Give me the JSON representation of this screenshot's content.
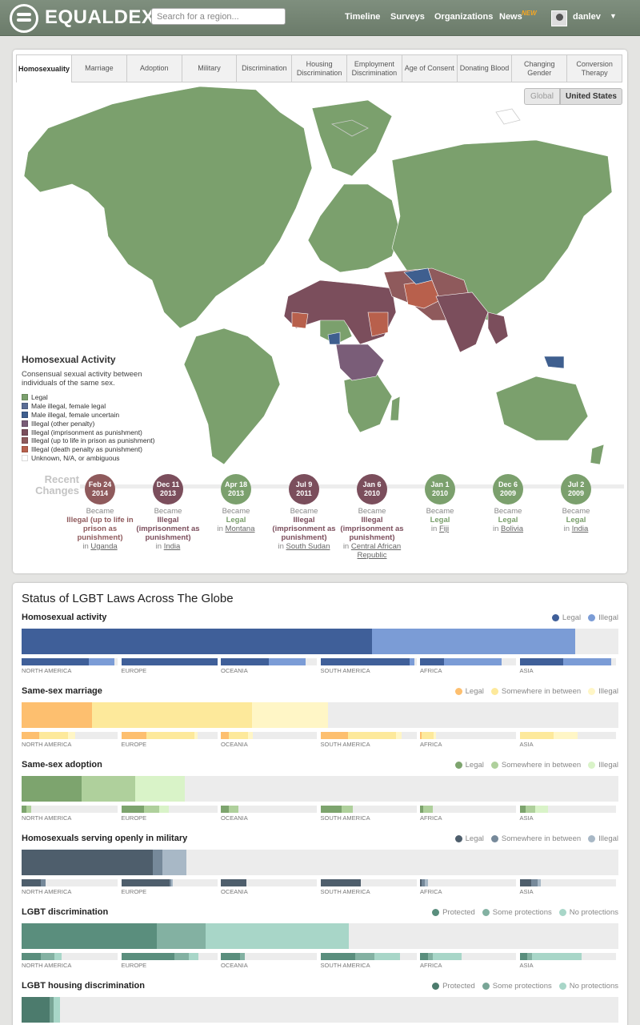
{
  "header": {
    "brand": "EQUALDEX",
    "search_placeholder": "Search for a region...",
    "nav": [
      {
        "label": "Timeline",
        "x": 431
      },
      {
        "label": "Surveys",
        "x": 488
      },
      {
        "label": "Organizations",
        "x": 543
      },
      {
        "label": "News",
        "x": 624
      }
    ],
    "news_badge": "NEW",
    "user": "danlev"
  },
  "tabs": [
    "Homosexuality",
    "Marriage",
    "Adoption",
    "Military",
    "Discrimination",
    "Housing Discrimination",
    "Employment Discrimination",
    "Age of Consent",
    "Donating Blood",
    "Changing Gender",
    "Conversion Therapy"
  ],
  "map_toggle": {
    "global": "Global",
    "us": "United States"
  },
  "legend": {
    "title": "Homosexual Activity",
    "desc": "Consensual sexual activity between individuals of the same sex.",
    "items": [
      {
        "label": "Legal",
        "color": "#7ba06d"
      },
      {
        "label": "Male illegal, female legal",
        "color": "#5a6d96"
      },
      {
        "label": "Male illegal, female uncertain",
        "color": "#3f5f8f"
      },
      {
        "label": "Illegal (other penalty)",
        "color": "#7a5d78"
      },
      {
        "label": "Illegal (imprisonment as punishment)",
        "color": "#7b4e5c"
      },
      {
        "label": "Illegal (up to life in prison as punishment)",
        "color": "#8f5a5c"
      },
      {
        "label": "Illegal (death penalty as punishment)",
        "color": "#b8604c"
      },
      {
        "label": "Unknown, N/A, or ambiguous",
        "color": "#ffffff"
      }
    ]
  },
  "recent": {
    "title": "Recent Changes",
    "became": "Became",
    "in": "in",
    "items": [
      {
        "month": "Feb 24",
        "year": "2014",
        "status": "Illegal (up to life in prison as punishment)",
        "place": "Uganda",
        "color": "#8f5a5c"
      },
      {
        "month": "Dec 11",
        "year": "2013",
        "status": "Illegal (imprisonment as punishment)",
        "place": "India",
        "color": "#7b4e5c"
      },
      {
        "month": "Apr 18",
        "year": "2013",
        "status": "Legal",
        "place": "Montana",
        "color": "#7ba06d"
      },
      {
        "month": "Jul 9",
        "year": "2011",
        "status": "Illegal (imprisonment as punishment)",
        "place": "South Sudan",
        "color": "#7b4e5c"
      },
      {
        "month": "Jan 6",
        "year": "2010",
        "status": "Illegal (imprisonment as punishment)",
        "place": "Central African Republic",
        "color": "#7b4e5c"
      },
      {
        "month": "Jan 1",
        "year": "2010",
        "status": "Legal",
        "place": "Fiji",
        "color": "#7ba06d"
      },
      {
        "month": "Dec 6",
        "year": "2009",
        "status": "Legal",
        "place": "Bolivia",
        "color": "#7ba06d"
      },
      {
        "month": "Jul 2",
        "year": "2009",
        "status": "Legal",
        "place": "India",
        "color": "#7ba06d"
      }
    ]
  },
  "status": {
    "title": "Status of LGBT Laws Across The Globe",
    "regions": [
      "NORTH AMERICA",
      "EUROPE",
      "OCEANIA",
      "SOUTH AMERICA",
      "AFRICA",
      "ASIA"
    ],
    "sections": [
      {
        "title": "Homosexual activity",
        "colors": [
          "#3f5f99",
          "#7b9cd6"
        ],
        "legend": [
          "Legal",
          "Illegal"
        ],
        "bar": [
          0.587,
          0.34
        ],
        "regions": [
          [
            0.7,
            0.27
          ],
          [
            1.0,
            0
          ],
          [
            0.5,
            0.38
          ],
          [
            0.93,
            0.05
          ],
          [
            0.25,
            0.6
          ],
          [
            0.45,
            0.5
          ]
        ]
      },
      {
        "title": "Same-sex marriage",
        "colors": [
          "#fdbf6f",
          "#fde99b",
          "#fff6c6"
        ],
        "legend": [
          "Legal",
          "Somewhere in between",
          "Illegal"
        ],
        "bar": [
          0.118,
          0.268,
          0.128
        ],
        "regions": [
          [
            0.18,
            0.3,
            0.08
          ],
          [
            0.26,
            0.5,
            0.04
          ],
          [
            0.08,
            0.2,
            0.05
          ],
          [
            0.29,
            0.5,
            0.06
          ],
          [
            0.02,
            0.12,
            0.03
          ],
          [
            0.0,
            0.35,
            0.25
          ]
        ]
      },
      {
        "title": "Same-sex adoption",
        "colors": [
          "#7da46e",
          "#afd09c",
          "#d9f3c8"
        ],
        "legend": [
          "Legal",
          "Somewhere in between",
          "Illegal"
        ],
        "bar": [
          0.1,
          0.09,
          0.084
        ],
        "regions": [
          [
            0.05,
            0.05,
            0
          ],
          [
            0.24,
            0.16,
            0.1
          ],
          [
            0.08,
            0.1,
            0
          ],
          [
            0.22,
            0.12,
            0
          ],
          [
            0.03,
            0.1,
            0
          ],
          [
            0.06,
            0.1,
            0.14
          ]
        ]
      },
      {
        "title": "Homosexuals serving openly in military",
        "colors": [
          "#4e5e6c",
          "#76899a",
          "#a8b8c6"
        ],
        "legend": [
          "Legal",
          "Somewhere in between",
          "Illegal"
        ],
        "bar": [
          0.22,
          0.016,
          0.04
        ],
        "regions": [
          [
            0.2,
            0.05,
            0
          ],
          [
            0.5,
            0.02,
            0.02
          ],
          [
            0.27,
            0,
            0
          ],
          [
            0.42,
            0,
            0
          ],
          [
            0.02,
            0.03,
            0.03
          ],
          [
            0.12,
            0.07,
            0.03
          ]
        ]
      },
      {
        "title": "LGBT discrimination",
        "colors": [
          "#5a8e7d",
          "#83b1a2",
          "#a8d6c8"
        ],
        "legend": [
          "Protected",
          "Some protections",
          "No protections"
        ],
        "bar": [
          0.226,
          0.082,
          0.24
        ],
        "regions": [
          [
            0.2,
            0.14,
            0.08
          ],
          [
            0.55,
            0.15,
            0.1
          ],
          [
            0.2,
            0.05,
            0
          ],
          [
            0.36,
            0.2,
            0.27
          ],
          [
            0.08,
            0.05,
            0.3
          ],
          [
            0.08,
            0.05,
            0.52
          ]
        ]
      },
      {
        "title": "LGBT housing discrimination",
        "colors": [
          "#4c7b6d",
          "#78a596",
          "#a8d6c8"
        ],
        "legend": [
          "Protected",
          "Some protections",
          "No protections"
        ],
        "bar": [
          0.047,
          0.007,
          0.011
        ],
        "regions": []
      }
    ]
  }
}
